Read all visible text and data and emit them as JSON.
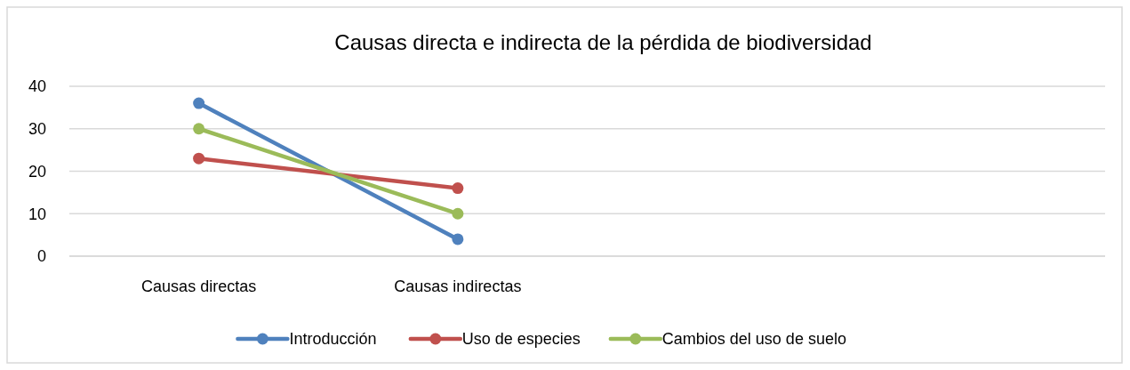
{
  "chart_data": {
    "type": "line",
    "title": "Causas directa e indirecta de la pérdida de biodiversidad",
    "categories": [
      "Causas directas",
      "Causas indirectas",
      null,
      null
    ],
    "series": [
      {
        "name": "Introducción",
        "color": "#4f81bd",
        "values": [
          36,
          4,
          null,
          null
        ]
      },
      {
        "name": "Uso de especies",
        "color": "#c0504d",
        "values": [
          23,
          16,
          null,
          null
        ]
      },
      {
        "name": "Cambios del uso de suelo",
        "color": "#9bbb59",
        "values": [
          30,
          10,
          null,
          null
        ]
      }
    ],
    "ylim": [
      0,
      40
    ],
    "yticks": [
      0,
      10,
      20,
      30,
      40
    ],
    "grid": "y",
    "legend": "bottom",
    "marker": "circle"
  }
}
